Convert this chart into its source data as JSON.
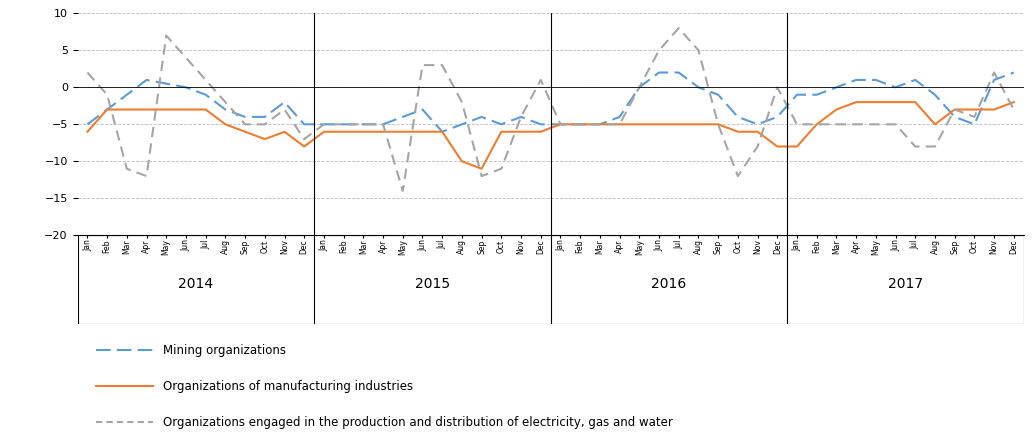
{
  "mining": [
    -5,
    -3,
    -1,
    1,
    0.5,
    0,
    -1,
    -3,
    -4,
    -4,
    -2,
    -5,
    -5,
    -5,
    -5,
    -5,
    -4,
    -3,
    -6,
    -5,
    -4,
    -5,
    -4,
    -5,
    -5,
    -5,
    -5,
    -4,
    0,
    2,
    2,
    0,
    -1,
    -4,
    -5,
    -4,
    -1,
    -1,
    0,
    1,
    1,
    0,
    1,
    -1,
    -4,
    -5,
    1,
    2
  ],
  "manufacturing": [
    -6,
    -3,
    -3,
    -3,
    -3,
    -3,
    -3,
    -5,
    -6,
    -7,
    -6,
    -8,
    -6,
    -6,
    -6,
    -6,
    -6,
    -6,
    -6,
    -10,
    -11,
    -6,
    -6,
    -6,
    -5,
    -5,
    -5,
    -5,
    -5,
    -5,
    -5,
    -5,
    -5,
    -6,
    -6,
    -8,
    -8,
    -5,
    -3,
    -2,
    -2,
    -2,
    -2,
    -5,
    -3,
    -3,
    -3,
    -2
  ],
  "electricity": [
    2,
    -1,
    -11,
    -12,
    7,
    4,
    1,
    -2,
    -5,
    -5,
    -3,
    -7,
    -5,
    -5,
    -5,
    -5,
    -14,
    3,
    3,
    -2,
    -12,
    -11,
    -4,
    1,
    -5,
    -5,
    -5,
    -5,
    0,
    5,
    8,
    5,
    -5,
    -12,
    -8,
    0,
    -5,
    -5,
    -5,
    -5,
    -5,
    -5,
    -8,
    -8,
    -3,
    -4,
    2,
    -3
  ],
  "ylim": [
    -20,
    10
  ],
  "yticks": [
    -20,
    -15,
    -10,
    -5,
    0,
    5,
    10
  ],
  "mining_color": "#5B9BD5",
  "manufacturing_color": "#ED7D31",
  "electricity_color": "#A5A5A5",
  "year_labels": [
    "2014",
    "2015",
    "2016",
    "2017"
  ],
  "months_short": [
    "Jan",
    "Feb",
    "Mar",
    "Apr",
    "May",
    "Jun",
    "Jul",
    "Aug",
    "Sep",
    "Oct",
    "Nov",
    "Dec"
  ]
}
